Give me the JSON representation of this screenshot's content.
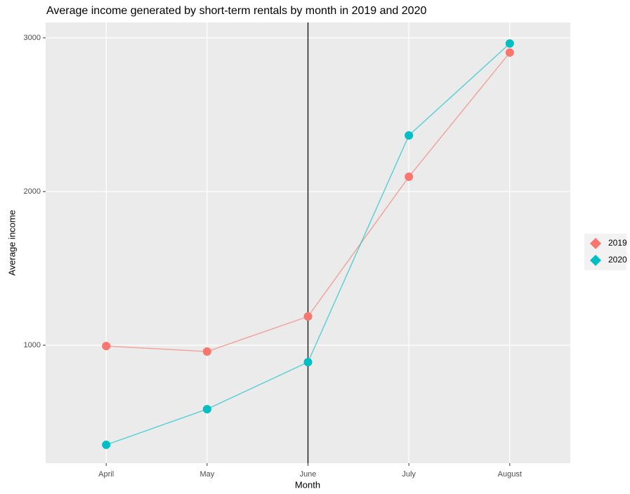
{
  "chart_data": {
    "type": "line",
    "title": "Average income generated by short-term rentals by month in 2019 and 2020",
    "x_label": "Month",
    "y_label": "Average income",
    "categories": [
      "April",
      "May",
      "June",
      "July",
      "August"
    ],
    "series": [
      {
        "name": "2019",
        "color": "#f8766d",
        "values": [
          995,
          959,
          1187,
          2096,
          2904
        ]
      },
      {
        "name": "2020",
        "color": "#00bfc4",
        "values": [
          352,
          584,
          890,
          2365,
          2963
        ]
      }
    ],
    "ylim": [
      233,
      3100
    ],
    "yticks": [
      1000,
      2000,
      3000
    ],
    "grid": true,
    "vline_at": "June",
    "legend": "right"
  }
}
